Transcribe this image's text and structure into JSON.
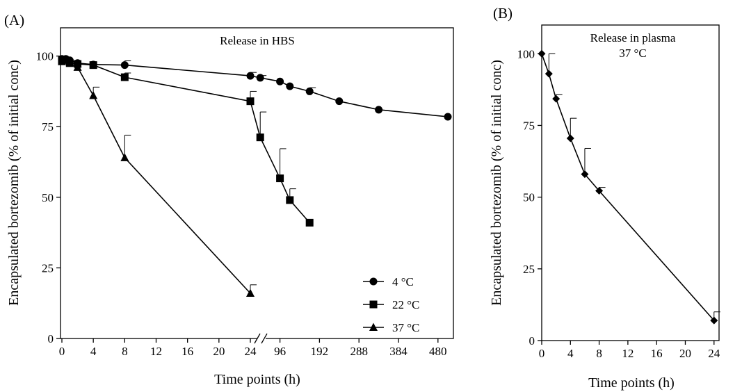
{
  "chart_data": [
    {
      "type": "line",
      "panel_label": "(A)",
      "annotation": "Release in HBS",
      "xlabel": "Time points (h)",
      "ylabel": "Encapsulated bortezomib (% of initial conc)",
      "ylim": [
        0,
        110
      ],
      "y_ticks": [
        "0",
        "25",
        "50",
        "75",
        "100"
      ],
      "x_axis_broken": true,
      "x_ticks_left": [
        "0",
        "4",
        "8",
        "12",
        "16",
        "20",
        "24"
      ],
      "x_ticks_right": [
        "96",
        "192",
        "288",
        "384",
        "480"
      ],
      "legend_position": "bottom-right",
      "series": [
        {
          "name": "4 °C",
          "marker": "circle",
          "points": [
            {
              "x": 0,
              "y": 99,
              "err": 0.5
            },
            {
              "x": 0.5,
              "y": 99,
              "err": 0.5
            },
            {
              "x": 1,
              "y": 98.5,
              "err": 0.5
            },
            {
              "x": 2,
              "y": 97.5,
              "err": 0.5
            },
            {
              "x": 4,
              "y": 97,
              "err": 0.5
            },
            {
              "x": 8,
              "y": 96.8,
              "err": 1.5
            },
            {
              "x": 24,
              "y": 93,
              "err": 1.2
            },
            {
              "x": 48,
              "y": 92.3,
              "err": 0.8
            },
            {
              "x": 96,
              "y": 91,
              "err": 0.5
            },
            {
              "x": 120,
              "y": 89.3,
              "err": 0.5
            },
            {
              "x": 168,
              "y": 87.5,
              "err": 1.3
            },
            {
              "x": 240,
              "y": 84,
              "err": 0.5
            },
            {
              "x": 336,
              "y": 81,
              "err": 0.5
            },
            {
              "x": 504,
              "y": 78.5,
              "err": 0.5
            }
          ]
        },
        {
          "name": "22 °C",
          "marker": "square",
          "points": [
            {
              "x": 0,
              "y": 98.5,
              "err": 1
            },
            {
              "x": 1,
              "y": 97.5,
              "err": 0.5
            },
            {
              "x": 2,
              "y": 97.2,
              "err": 0.5
            },
            {
              "x": 4,
              "y": 96.8,
              "err": 0.5
            },
            {
              "x": 8,
              "y": 92.5,
              "err": 1.5
            },
            {
              "x": 24,
              "y": 84,
              "err": 3.5
            },
            {
              "x": 48,
              "y": 71.2,
              "err": 9
            },
            {
              "x": 96,
              "y": 56.7,
              "err": 10.5
            },
            {
              "x": 120,
              "y": 49,
              "err": 4
            },
            {
              "x": 168,
              "y": 41,
              "err": 0.5
            }
          ]
        },
        {
          "name": "37 °C",
          "marker": "triangle",
          "points": [
            {
              "x": 0,
              "y": 98,
              "err": 0.5
            },
            {
              "x": 2,
              "y": 96,
              "err": 0.5
            },
            {
              "x": 4,
              "y": 86,
              "err": 3
            },
            {
              "x": 8,
              "y": 64,
              "err": 8
            },
            {
              "x": 24,
              "y": 16,
              "err": 3
            }
          ]
        }
      ]
    },
    {
      "type": "line",
      "panel_label": "(B)",
      "annotation_lines": [
        "Release in plasma",
        "37 °C"
      ],
      "xlabel": "Time points (h)",
      "ylabel": "Encapsulated bortezomib (% of initial conc)",
      "xlim": [
        0,
        24.7
      ],
      "ylim": [
        0,
        110
      ],
      "x_ticks": [
        "0",
        "4",
        "8",
        "12",
        "16",
        "20",
        "24"
      ],
      "y_ticks": [
        "0",
        "25",
        "50",
        "75",
        "100"
      ],
      "series": [
        {
          "marker": "diamond",
          "points": [
            {
              "x": 0,
              "y": 100,
              "err": 0
            },
            {
              "x": 1,
              "y": 93,
              "err": 7
            },
            {
              "x": 2,
              "y": 84.3,
              "err": 1.5
            },
            {
              "x": 4,
              "y": 70.5,
              "err": 7
            },
            {
              "x": 6,
              "y": 58,
              "err": 9
            },
            {
              "x": 8,
              "y": 52.2,
              "err": 1.2
            },
            {
              "x": 24,
              "y": 7,
              "err": 3
            }
          ]
        }
      ]
    }
  ]
}
